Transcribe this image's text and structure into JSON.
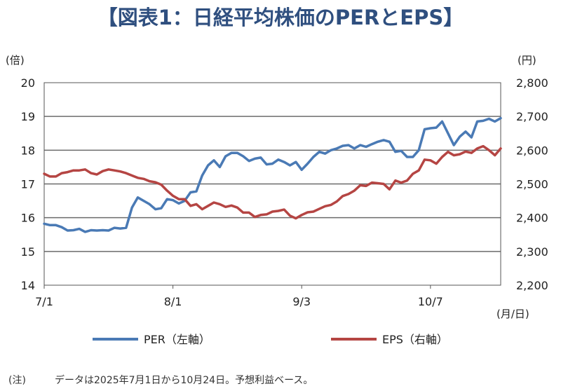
{
  "page": {
    "note_label": "(注)",
    "note_text": "データは2025年7月1日から10月24日。予想利益ベース。"
  },
  "chart_data": {
    "type": "line",
    "title": "【図表1：日経平均株価のPERとEPS】",
    "xlabel_unit": "(月/日)",
    "y_left_unit": "(倍)",
    "y_right_unit": "(円)",
    "x_ticks": [
      "7/1",
      "8/1",
      "9/3",
      "10/7"
    ],
    "y_left_ticks": [
      "14",
      "15",
      "16",
      "17",
      "18",
      "19",
      "20"
    ],
    "y_right_ticks": [
      "2,200",
      "2,300",
      "2,400",
      "2,500",
      "2,600",
      "2,700",
      "2,800"
    ],
    "ylim_left": [
      14,
      20
    ],
    "ylim_right": [
      2200,
      2800
    ],
    "grid": true,
    "legend_position": "bottom",
    "colors": {
      "PER": "#4a7ab5",
      "EPS": "#b54543"
    },
    "x_dates": [
      "07-01",
      "07-02",
      "07-03",
      "07-04",
      "07-07",
      "07-08",
      "07-09",
      "07-10",
      "07-11",
      "07-14",
      "07-15",
      "07-16",
      "07-17",
      "07-18",
      "07-22",
      "07-23",
      "07-24",
      "07-25",
      "07-28",
      "07-29",
      "07-30",
      "07-31",
      "08-01",
      "08-04",
      "08-05",
      "08-06",
      "08-07",
      "08-08",
      "08-12",
      "08-13",
      "08-14",
      "08-15",
      "08-18",
      "08-19",
      "08-20",
      "08-21",
      "08-22",
      "08-25",
      "08-26",
      "08-27",
      "08-28",
      "08-29",
      "09-01",
      "09-02",
      "09-03",
      "09-04",
      "09-05",
      "09-08",
      "09-09",
      "09-10",
      "09-11",
      "09-12",
      "09-16",
      "09-17",
      "09-18",
      "09-19",
      "09-22",
      "09-24",
      "09-25",
      "09-26",
      "09-29",
      "09-30",
      "10-01",
      "10-02",
      "10-03",
      "10-06",
      "10-07",
      "10-08",
      "10-09",
      "10-10",
      "10-14",
      "10-15",
      "10-16",
      "10-17",
      "10-20",
      "10-21",
      "10-22",
      "10-23",
      "10-24"
    ],
    "series": [
      {
        "name": "PER（左軸）",
        "axis": "left",
        "values": [
          15.82,
          15.78,
          15.78,
          15.72,
          15.62,
          15.63,
          15.67,
          15.58,
          15.63,
          15.62,
          15.63,
          15.62,
          15.7,
          15.68,
          15.7,
          16.3,
          16.6,
          16.5,
          16.4,
          16.25,
          16.28,
          16.55,
          16.52,
          16.42,
          16.5,
          16.75,
          16.78,
          17.25,
          17.55,
          17.7,
          17.5,
          17.82,
          17.92,
          17.92,
          17.82,
          17.68,
          17.75,
          17.78,
          17.58,
          17.6,
          17.72,
          17.65,
          17.55,
          17.65,
          17.42,
          17.6,
          17.8,
          17.95,
          17.9,
          18.0,
          18.05,
          18.13,
          18.15,
          18.05,
          18.15,
          18.1,
          18.18,
          18.25,
          18.3,
          18.25,
          17.95,
          17.98,
          17.8,
          17.8,
          18.0,
          18.62,
          18.65,
          18.67,
          18.85,
          18.5,
          18.15,
          18.4,
          18.55,
          18.38,
          18.85,
          18.87,
          18.93,
          18.85,
          18.95
        ]
      },
      {
        "name": "EPS（右軸）",
        "axis": "right",
        "values": [
          2530,
          2522,
          2522,
          2532,
          2535,
          2540,
          2540,
          2543,
          2532,
          2528,
          2538,
          2543,
          2540,
          2537,
          2532,
          2525,
          2518,
          2515,
          2508,
          2505,
          2498,
          2480,
          2465,
          2455,
          2455,
          2435,
          2440,
          2425,
          2435,
          2445,
          2440,
          2432,
          2436,
          2430,
          2415,
          2415,
          2402,
          2408,
          2410,
          2418,
          2420,
          2424,
          2406,
          2398,
          2408,
          2416,
          2418,
          2426,
          2434,
          2438,
          2448,
          2464,
          2470,
          2480,
          2496,
          2494,
          2504,
          2502,
          2500,
          2484,
          2510,
          2504,
          2510,
          2530,
          2540,
          2572,
          2570,
          2560,
          2580,
          2595,
          2585,
          2588,
          2596,
          2592,
          2605,
          2612,
          2600,
          2585,
          2605
        ]
      }
    ]
  }
}
